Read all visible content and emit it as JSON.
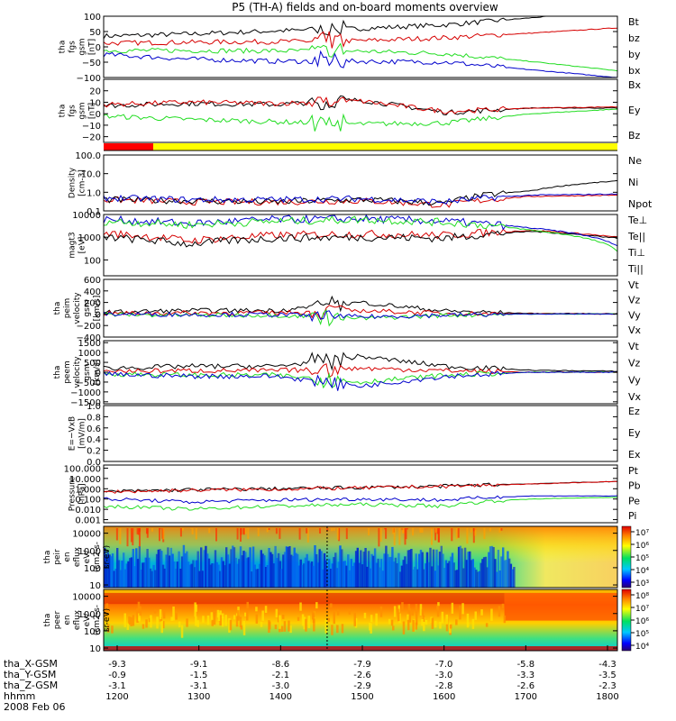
{
  "figure": {
    "title": "P5 (TH-A) fields and on-board moments overview",
    "date": "2008 Feb 06"
  },
  "colors": {
    "black": "#000000",
    "red": "#d60000",
    "green": "#22dd22",
    "blue": "#0000cc",
    "yellow": "#ffff00"
  },
  "time_axis": {
    "labels": [
      {
        "name": "tha_X-GSM",
        "values": [
          "-9.3",
          "-9.1",
          "-8.6",
          "-7.9",
          "-7.0",
          "-5.8",
          "-4.3"
        ]
      },
      {
        "name": "tha_Y-GSM",
        "values": [
          "-0.9",
          "-1.5",
          "-2.1",
          "-2.6",
          "-3.0",
          "-3.3",
          "-3.5"
        ]
      },
      {
        "name": "tha_Z-GSM",
        "values": [
          "-3.1",
          "-3.1",
          "-3.0",
          "-2.9",
          "-2.8",
          "-2.6",
          "-2.3"
        ]
      },
      {
        "name": "hhmm",
        "values": [
          "1200",
          "1300",
          "1400",
          "1500",
          "1600",
          "1700",
          "1800"
        ]
      }
    ]
  },
  "chart_data": [
    {
      "type": "line",
      "ylabel": [
        "tha",
        "fgs",
        "gsm",
        "[nT]"
      ],
      "ylim": [
        -100,
        100
      ],
      "yticks": [
        "100",
        "50",
        "0",
        "−50",
        "−100"
      ],
      "x": [
        "1200",
        "1300",
        "1400",
        "1500",
        "1600",
        "1700",
        "1800"
      ],
      "series": [
        {
          "name": "Bt",
          "color": "#000000",
          "values": [
            35,
            42,
            52,
            60,
            72,
            95,
            118
          ]
        },
        {
          "name": "bz",
          "color": "#d60000",
          "values": [
            12,
            15,
            17,
            20,
            30,
            45,
            62
          ]
        },
        {
          "name": "by",
          "color": "#22dd22",
          "values": [
            -12,
            -12,
            -13,
            -14,
            -22,
            -48,
            -78
          ]
        },
        {
          "name": "bx",
          "color": "#0000cc",
          "values": [
            -25,
            -40,
            -47,
            -47,
            -50,
            -75,
            -100
          ]
        }
      ]
    },
    {
      "type": "line",
      "ylabel": [
        "tha",
        "fgs",
        "gsm",
        "[nT]"
      ],
      "ylim": [
        -25,
        30
      ],
      "yticks": [
        "20",
        "10",
        "0",
        "−10",
        "−20"
      ],
      "x": [
        "1200",
        "1300",
        "1400",
        "1500",
        "1600",
        "1700",
        "1800"
      ],
      "series": [
        {
          "name": "Bx",
          "color": "#000000",
          "values": [
            7,
            9,
            8,
            12,
            1,
            5,
            5
          ]
        },
        {
          "name": "Ey",
          "color": "#22dd22",
          "values": [
            -2,
            -5,
            -7,
            -9,
            -8,
            0,
            4
          ]
        },
        {
          "name": "Bz",
          "color": "#d60000",
          "values": [
            8,
            10,
            9,
            11,
            2,
            5,
            6
          ]
        }
      ]
    },
    {
      "type": "line",
      "ylabel": [
        "Density",
        "[cm-3]"
      ],
      "yscale": "log",
      "ylim": [
        0.1,
        100
      ],
      "yticks": [
        "100.0",
        "10.0",
        "1.0",
        "0.1"
      ],
      "x": [
        "1200",
        "1300",
        "1400",
        "1500",
        "1600",
        "1700",
        "1800"
      ],
      "series": [
        {
          "name": "Ne",
          "color": "#d60000",
          "values": [
            0.4,
            0.3,
            0.3,
            0.35,
            0.2,
            0.6,
            0.7
          ]
        },
        {
          "name": "Ni",
          "color": "#000000",
          "values": [
            0.4,
            0.35,
            0.3,
            0.4,
            0.25,
            1.2,
            4.0
          ]
        },
        {
          "name": "Npot",
          "color": "#0000cc",
          "values": [
            0.5,
            0.4,
            0.4,
            0.45,
            0.3,
            0.7,
            0.8
          ]
        }
      ]
    },
    {
      "type": "line",
      "ylabel": [
        "magt3",
        "[eV]"
      ],
      "yscale": "log",
      "ylim": [
        20,
        10000
      ],
      "yticks": [
        "10000",
        "1000",
        "100"
      ],
      "x": [
        "1200",
        "1300",
        "1400",
        "1500",
        "1600",
        "1700",
        "1800"
      ],
      "series": [
        {
          "name": "Te⊥",
          "color": "#d60000",
          "values": [
            1500,
            700,
            1200,
            1400,
            1200,
            2000,
            1000
          ]
        },
        {
          "name": "Te||",
          "color": "#000000",
          "values": [
            1000,
            500,
            900,
            1000,
            900,
            1800,
            900
          ]
        },
        {
          "name": "Ti⊥",
          "color": "#0000cc",
          "values": [
            6000,
            4000,
            6000,
            6500,
            5000,
            2500,
            400
          ]
        },
        {
          "name": "Ti||",
          "color": "#22dd22",
          "values": [
            5000,
            3500,
            5000,
            6000,
            4500,
            2000,
            250
          ]
        }
      ]
    },
    {
      "type": "line",
      "ylabel": [
        "tha",
        "peim",
        "velocity",
        "gsm",
        "[km/s]"
      ],
      "ylim": [
        -400,
        600
      ],
      "yticks": [
        "600",
        "400",
        "200",
        "0",
        "−200",
        "−400"
      ],
      "x": [
        "1200",
        "1300",
        "1400",
        "1500",
        "1600",
        "1700",
        "1800"
      ],
      "series": [
        {
          "name": "Vt",
          "color": "#000000",
          "values": [
            30,
            60,
            60,
            200,
            50,
            10,
            5
          ]
        },
        {
          "name": "Vz",
          "color": "#d60000",
          "values": [
            10,
            20,
            20,
            60,
            10,
            5,
            0
          ]
        },
        {
          "name": "Vy",
          "color": "#22dd22",
          "values": [
            -10,
            -20,
            -20,
            -80,
            -20,
            0,
            0
          ]
        },
        {
          "name": "Vx",
          "color": "#0000cc",
          "values": [
            0,
            -10,
            -10,
            -50,
            -20,
            0,
            0
          ]
        }
      ]
    },
    {
      "type": "line",
      "ylabel": [
        "tha",
        "peem",
        "velocity",
        "gsm",
        "[km/s]"
      ],
      "ylim": [
        -1600,
        1600
      ],
      "yticks": [
        "1500",
        "1000",
        "500",
        "0",
        "−500",
        "−1000",
        "−1500"
      ],
      "x": [
        "1200",
        "1300",
        "1400",
        "1500",
        "1600",
        "1700",
        "1800"
      ],
      "series": [
        {
          "name": "Vt",
          "color": "#000000",
          "values": [
            200,
            300,
            300,
            800,
            300,
            100,
            50
          ]
        },
        {
          "name": "Vz",
          "color": "#d60000",
          "values": [
            50,
            80,
            80,
            200,
            80,
            0,
            0
          ]
        },
        {
          "name": "Vy",
          "color": "#22dd22",
          "values": [
            -80,
            -150,
            -150,
            -500,
            -150,
            0,
            0
          ]
        },
        {
          "name": "Vx",
          "color": "#0000cc",
          "values": [
            -100,
            -200,
            -200,
            -700,
            -200,
            0,
            0
          ]
        }
      ]
    },
    {
      "type": "line",
      "ylabel": [
        "E=−VxB",
        "[mV/m]"
      ],
      "ylim": [
        0,
        1
      ],
      "yticks": [
        "1.0",
        "0.8",
        "0.6",
        "0.4",
        "0.2",
        "0.0"
      ],
      "x": [],
      "series": [
        {
          "name": "Ez",
          "color": "#d60000",
          "values": []
        },
        {
          "name": "Ey",
          "color": "#22dd22",
          "values": []
        },
        {
          "name": "Ex",
          "color": "#0000cc",
          "values": []
        }
      ]
    },
    {
      "type": "line",
      "ylabel": [
        "Pressure",
        "[nPa]"
      ],
      "yscale": "log",
      "ylim": [
        0.0005,
        200
      ],
      "yticks": [
        "100.000",
        "10.000",
        "1.000",
        "0.100",
        "0.010",
        "0.001"
      ],
      "x": [
        "1200",
        "1300",
        "1400",
        "1500",
        "1600",
        "1700",
        "1800"
      ],
      "series": [
        {
          "name": "Pt",
          "color": "#000000",
          "values": [
            0.5,
            0.8,
            1.0,
            1.3,
            1.8,
            3.0,
            5.0
          ]
        },
        {
          "name": "Pb",
          "color": "#d60000",
          "values": [
            0.5,
            0.7,
            0.9,
            1.2,
            1.7,
            2.8,
            5.0
          ]
        },
        {
          "name": "Pe",
          "color": "#22dd22",
          "values": [
            0.02,
            0.01,
            0.02,
            0.03,
            0.02,
            0.1,
            0.15
          ]
        },
        {
          "name": "Pi",
          "color": "#0000cc",
          "values": [
            0.1,
            0.05,
            0.08,
            0.1,
            0.08,
            0.2,
            0.2
          ]
        }
      ]
    },
    {
      "type": "heatmap",
      "ylabel": [
        "tha",
        "peir",
        "en",
        "eflux",
        "eV/",
        "(cm2-s-",
        "sr-eV)"
      ],
      "yscale": "log",
      "yticks": [
        "10000",
        "1000",
        "100",
        "10"
      ],
      "colorbar": {
        "ticks": [
          "10⁷",
          "10⁶",
          "10⁵",
          "10⁴",
          "10³"
        ]
      }
    },
    {
      "type": "heatmap",
      "ylabel": [
        "tha",
        "peer",
        "en",
        "eflux",
        "eV/",
        "(cm2-s-",
        "sr-eV)"
      ],
      "yscale": "log",
      "yticks": [
        "10000",
        "1000",
        "100",
        "10"
      ],
      "colorbar": {
        "ticks": [
          "10⁸",
          "10⁷",
          "10⁶",
          "10⁵",
          "10⁴"
        ]
      }
    }
  ]
}
